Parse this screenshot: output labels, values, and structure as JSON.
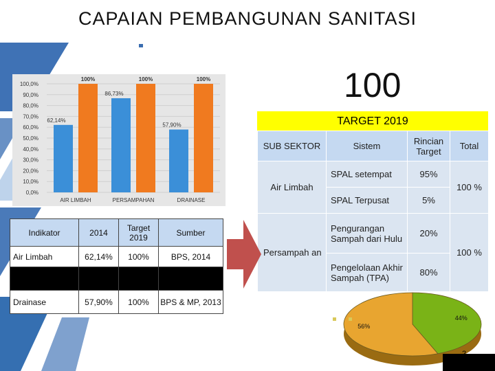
{
  "slide": {
    "title": "CAPAIAN PEMBANGUNAN SANITASI",
    "big_number": "100",
    "target_banner": "TARGET 2019",
    "page_number": "2"
  },
  "chart_data": [
    {
      "type": "bar",
      "categories": [
        "AIR LIMBAH",
        "PERSAMPAHAN",
        "DRAINASE"
      ],
      "series": [
        {
          "values": [
            62.14,
            86.73,
            57.9
          ],
          "labels": [
            "62,14%",
            "86,73%",
            "57,90%"
          ],
          "color": "#3b8fd8"
        },
        {
          "values": [
            100,
            100,
            100
          ],
          "labels": [
            "100%",
            "100%",
            "100%"
          ],
          "color": "#f07a1f"
        }
      ],
      "ylim": [
        0,
        100
      ],
      "yticks": [
        "0,0%",
        "10,0%",
        "20,0%",
        "30,0%",
        "40,0%",
        "50,0%",
        "60,0%",
        "70,0%",
        "80,0%",
        "90,0%",
        "100,0%"
      ],
      "grid": true
    },
    {
      "type": "pie",
      "values": [
        44,
        56
      ],
      "labels": [
        "44%",
        "56%"
      ],
      "colors": [
        "#7ab317",
        "#e8a530"
      ]
    }
  ],
  "right_table": {
    "headers": [
      "SUB SEKTOR",
      "Sistem",
      "Rincian Target",
      "Total"
    ],
    "groups": [
      {
        "sector": "Air Limbah",
        "total": "100 %",
        "rows": [
          {
            "system": "SPAL setempat",
            "target": "95%"
          },
          {
            "system": "SPAL Terpusat",
            "target": "5%"
          }
        ]
      },
      {
        "sector": "Persampah an",
        "total": "100 %",
        "rows": [
          {
            "system": "Pengurangan Sampah dari Hulu",
            "target": "20%"
          },
          {
            "system": "Pengelolaan Akhir Sampah (TPA)",
            "target": "80%"
          }
        ]
      }
    ]
  },
  "left_table": {
    "headers": [
      "Indikator",
      "2014",
      "Target 2019",
      "Sumber"
    ],
    "rows": [
      [
        "Air Limbah",
        "62,14%",
        "100%",
        "BPS, 2014"
      ],
      [
        "",
        "",
        "",
        ""
      ],
      [
        "Drainase",
        "57,90%",
        "100%",
        "BPS & MP, 2013"
      ]
    ]
  },
  "colors": {
    "banner": "#ffff00",
    "table_blue": "#c5d9f1",
    "table_blue_light": "#dbe5f1",
    "arrow": "#c0504d",
    "deco_blue": "#1f5fa8"
  }
}
